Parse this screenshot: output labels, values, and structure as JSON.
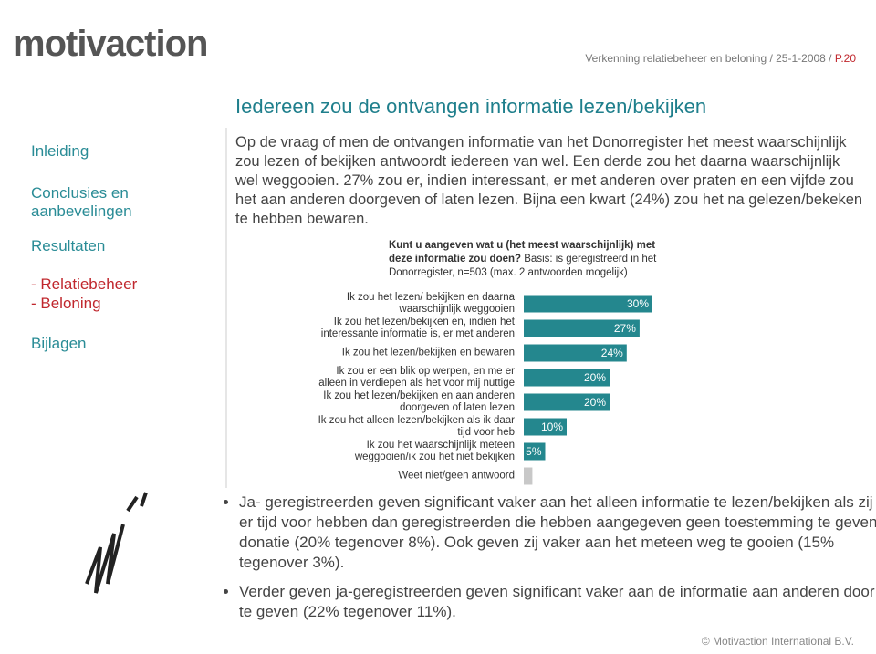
{
  "header": {
    "logo": "motivaction",
    "info": "Verkenning relatiebeheer en beloning / 25-1-2008 / ",
    "page": "P.20"
  },
  "title": "Iedereen zou de ontvangen informatie lezen/bekijken",
  "nav": [
    "Inleiding",
    "Conclusies en aanbevelingen",
    "Resultaten",
    "- Relatiebeheer",
    "- Beloning",
    "Bijlagen"
  ],
  "intro": "Op de vraag of men de ontvangen informatie van het Donorregister het meest waarschijnlijk zou lezen of bekijken antwoordt iedereen van wel. Een derde zou het daarna waarschijnlijk wel weggooien. 27% zou er, indien interessant, er met anderen over praten en een vijfde zou het aan anderen doorgeven of laten lezen. Bijna een kwart (24%) zou het na gelezen/bekeken te hebben bewaren.",
  "chart_data": {
    "type": "bar",
    "orientation": "horizontal",
    "title": "Kunt u aangeven wat u (het meest waarschijnlijk) met deze informatie zou doen?",
    "subtitle": "Basis: is geregistreerd in het Donorregister, n=503 (max. 2 antwoorden mogelijk)",
    "categories": [
      "Ik zou het lezen/ bekijken en daarna waarschijnlijk weggooien",
      "Ik zou het lezen/bekijken en, indien het interessante informatie is, er met anderen",
      "Ik zou het lezen/bekijken en bewaren",
      "Ik zou er een blik op werpen, en me er alleen in verdiepen als het voor mij nuttige",
      "Ik zou het lezen/bekijken en aan anderen doorgeven of laten lezen",
      "Ik zou het alleen lezen/bekijken als ik daar tijd voor heb",
      "Ik zou het waarschijnlijk meteen weggooien/ik zou het niet bekijken",
      "Weet niet/geen antwoord"
    ],
    "values": [
      30,
      27,
      24,
      20,
      20,
      10,
      5,
      2
    ],
    "value_labels": [
      "30%",
      "27%",
      "24%",
      "20%",
      "20%",
      "10%",
      "5%",
      null
    ],
    "colors": [
      "#24878e",
      "#24878e",
      "#24878e",
      "#24878e",
      "#24878e",
      "#24878e",
      "#24878e",
      "#c8c8c8"
    ]
  },
  "bullets": [
    "Ja- geregistreerden geven significant vaker aan het alleen informatie te lezen/bekijken als zij er tijd voor hebben dan geregistreerden die hebben aangegeven geen toestemming te geven donatie (20% tegenover 8%). Ook geven zij vaker aan het meteen weg te gooien (15% tegenover 3%).",
    "Verder geven ja-geregistreerden geven significant vaker aan de informatie aan anderen door te geven (22% tegenover 11%)."
  ],
  "footer": "© Motivaction International B.V."
}
